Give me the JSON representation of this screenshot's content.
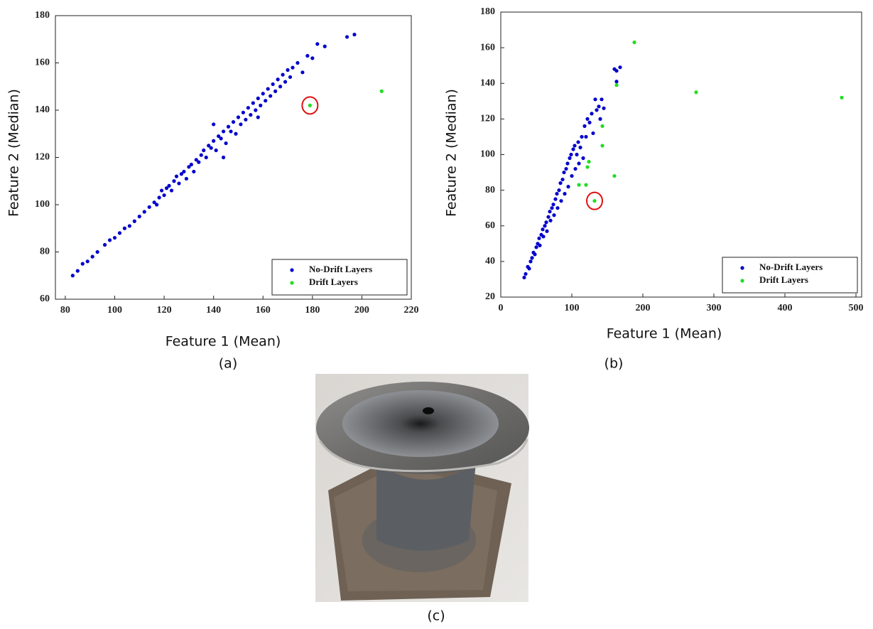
{
  "chart_data": [
    {
      "type": "scatter",
      "caption": "(a)",
      "xlabel": "Feature 1 (Mean)",
      "ylabel": "Feature 2 (Median)",
      "xlim": [
        76,
        220
      ],
      "xticks": [
        80,
        100,
        120,
        140,
        160,
        180,
        200,
        220
      ],
      "ylim": [
        60,
        180
      ],
      "yticks": [
        60,
        80,
        100,
        120,
        140,
        160,
        180
      ],
      "legend": "lower right",
      "series": [
        {
          "name": "No-Drift Layers",
          "color": "#0000cc",
          "x": [
            83,
            85,
            87,
            89,
            91,
            93,
            96,
            98,
            100,
            102,
            104,
            106,
            108,
            110,
            112,
            114,
            116,
            117,
            118,
            119,
            120,
            121,
            122,
            123,
            124,
            125,
            126,
            127,
            128,
            129,
            130,
            131,
            132,
            133,
            134,
            135,
            136,
            137,
            138,
            139,
            140,
            141,
            142,
            143,
            144,
            145,
            146,
            147,
            148,
            149,
            150,
            151,
            152,
            153,
            154,
            155,
            156,
            157,
            158,
            159,
            160,
            161,
            162,
            163,
            164,
            165,
            166,
            167,
            168,
            169,
            170,
            171,
            172,
            174,
            176,
            178,
            180,
            182,
            185,
            194,
            197,
            144,
            158,
            140
          ],
          "y": [
            70,
            72,
            75,
            76,
            78,
            80,
            83,
            85,
            86,
            88,
            90,
            91,
            93,
            95,
            97,
            99,
            101,
            100,
            103,
            106,
            104,
            107,
            108,
            106,
            110,
            112,
            109,
            113,
            114,
            111,
            116,
            117,
            114,
            119,
            118,
            121,
            123,
            120,
            125,
            124,
            127,
            123,
            129,
            128,
            131,
            126,
            133,
            131,
            135,
            130,
            137,
            134,
            139,
            136,
            141,
            138,
            143,
            140,
            145,
            142,
            147,
            144,
            149,
            146,
            151,
            148,
            153,
            150,
            155,
            152,
            157,
            154,
            158,
            160,
            156,
            163,
            162,
            168,
            167,
            171,
            172,
            120,
            137,
            134
          ]
        },
        {
          "name": "Drift Layers",
          "color": "#22dd22",
          "x": [
            179,
            208
          ],
          "y": [
            142,
            148
          ]
        }
      ]
    },
    {
      "type": "scatter",
      "caption": "(b)",
      "xlabel": "Feature 1 (Mean)",
      "ylabel": "Feature 2 (Median)",
      "xlim": [
        0,
        508
      ],
      "xticks": [
        0,
        100,
        200,
        300,
        400,
        500
      ],
      "ylim": [
        20,
        180
      ],
      "yticks": [
        20,
        40,
        60,
        80,
        100,
        120,
        140,
        160,
        180
      ],
      "legend": "lower right",
      "series": [
        {
          "name": "No-Drift Layers",
          "color": "#0000cc",
          "x": [
            33,
            35,
            38,
            40,
            42,
            44,
            46,
            48,
            50,
            52,
            54,
            55,
            57,
            59,
            60,
            62,
            64,
            65,
            67,
            69,
            70,
            72,
            74,
            75,
            77,
            79,
            80,
            82,
            84,
            85,
            87,
            89,
            90,
            92,
            94,
            95,
            97,
            99,
            100,
            102,
            104,
            105,
            107,
            109,
            110,
            112,
            114,
            116,
            118,
            120,
            122,
            125,
            128,
            130,
            133,
            135,
            138,
            140,
            142,
            145,
            160,
            163,
            163,
            168
          ],
          "y": [
            31,
            33,
            37,
            36,
            40,
            42,
            45,
            44,
            48,
            50,
            53,
            49,
            55,
            58,
            54,
            60,
            62,
            57,
            65,
            68,
            63,
            70,
            72,
            66,
            75,
            78,
            70,
            80,
            84,
            74,
            86,
            90,
            78,
            92,
            95,
            82,
            98,
            100,
            88,
            103,
            105,
            92,
            100,
            107,
            95,
            104,
            110,
            98,
            116,
            110,
            120,
            118,
            123,
            112,
            131,
            125,
            127,
            120,
            131,
            126,
            148,
            147,
            141,
            149
          ]
        },
        {
          "name": "Drift Layers",
          "color": "#22dd22",
          "x": [
            132,
            188,
            275,
            480,
            163,
            143,
            143,
            160,
            122,
            124,
            110,
            120
          ],
          "y": [
            74,
            163,
            135,
            132,
            139,
            116,
            105,
            88,
            93,
            96,
            83,
            83
          ]
        }
      ]
    }
  ],
  "photo": {
    "caption": "(c)"
  }
}
